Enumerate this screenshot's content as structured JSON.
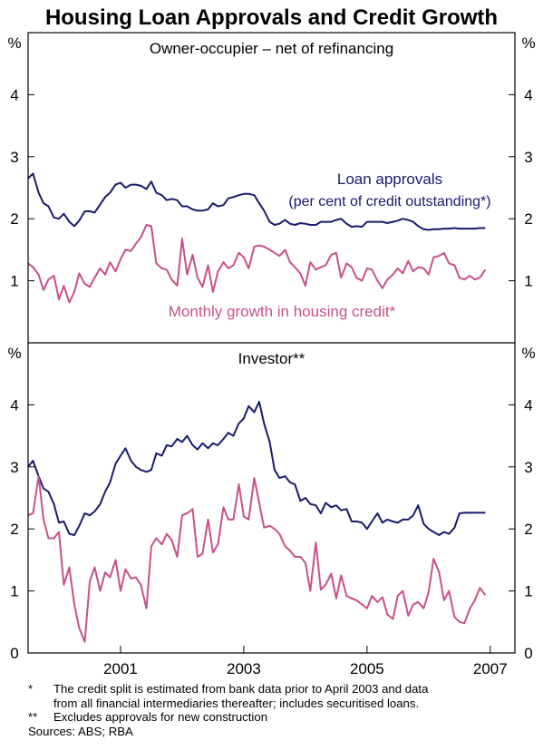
{
  "chart_data": {
    "title": "Housing Loan Approvals and Credit Growth",
    "x_axis": {
      "tick_labels": [
        "2001",
        "2003",
        "2005",
        "2007"
      ],
      "range": [
        1999.5,
        2007.4
      ]
    },
    "panels": [
      {
        "title": "Owner-occupier – net of refinancing",
        "y_unit": "%",
        "ylim": [
          0,
          5
        ],
        "y_ticks": [
          1,
          2,
          3,
          4
        ],
        "type": "line",
        "series": [
          {
            "name": "Loan approvals",
            "label_lines": [
              "Loan approvals",
              "(per cent of credit outstanding*)"
            ],
            "color": "#1a1a6e",
            "x": [
              1999.5,
              1999.58,
              1999.67,
              1999.75,
              1999.83,
              1999.92,
              2000.0,
              2000.08,
              2000.17,
              2000.25,
              2000.33,
              2000.42,
              2000.5,
              2000.58,
              2000.67,
              2000.75,
              2000.83,
              2000.92,
              2001.0,
              2001.08,
              2001.17,
              2001.25,
              2001.33,
              2001.42,
              2001.5,
              2001.58,
              2001.67,
              2001.75,
              2001.83,
              2001.92,
              2002.0,
              2002.08,
              2002.17,
              2002.25,
              2002.33,
              2002.42,
              2002.5,
              2002.58,
              2002.67,
              2002.75,
              2002.83,
              2002.92,
              2003.0,
              2003.08,
              2003.17,
              2003.25,
              2003.33,
              2003.42,
              2003.5,
              2003.58,
              2003.67,
              2003.75,
              2003.83,
              2003.92,
              2004.0,
              2004.08,
              2004.17,
              2004.25,
              2004.33,
              2004.42,
              2004.5,
              2004.58,
              2004.67,
              2004.75,
              2004.83,
              2004.92,
              2005.0,
              2005.08,
              2005.17,
              2005.25,
              2005.33,
              2005.42,
              2005.5,
              2005.58,
              2005.67,
              2005.75,
              2005.83,
              2005.92,
              2006.0,
              2006.08,
              2006.17,
              2006.25,
              2006.33,
              2006.42,
              2006.5,
              2006.58,
              2006.67,
              2006.75,
              2006.83,
              2006.92
            ],
            "values": [
              2.65,
              2.73,
              2.42,
              2.25,
              2.2,
              2.02,
              2.0,
              2.08,
              1.95,
              1.88,
              1.97,
              2.12,
              2.12,
              2.1,
              2.23,
              2.35,
              2.42,
              2.55,
              2.58,
              2.5,
              2.55,
              2.55,
              2.53,
              2.48,
              2.6,
              2.42,
              2.38,
              2.3,
              2.32,
              2.3,
              2.2,
              2.2,
              2.15,
              2.13,
              2.13,
              2.15,
              2.25,
              2.2,
              2.22,
              2.33,
              2.35,
              2.38,
              2.4,
              2.4,
              2.38,
              2.25,
              2.13,
              1.95,
              1.9,
              1.92,
              1.98,
              1.92,
              1.9,
              1.93,
              1.92,
              1.9,
              1.9,
              1.95,
              1.95,
              1.95,
              1.98,
              2.0,
              1.92,
              1.87,
              1.88,
              1.87,
              1.95,
              1.95,
              1.95,
              1.95,
              1.93,
              1.95,
              1.97,
              2.0,
              1.98,
              1.95,
              1.88,
              1.83,
              1.82,
              1.83,
              1.83,
              1.84,
              1.84,
              1.85,
              1.84,
              1.84,
              1.84,
              1.84,
              1.85,
              1.85
            ]
          },
          {
            "name": "Monthly growth in housing credit*",
            "label_lines": [
              "Monthly growth in housing credit*"
            ],
            "color": "#c8508a",
            "x": [
              1999.5,
              1999.58,
              1999.67,
              1999.75,
              1999.83,
              1999.92,
              2000.0,
              2000.08,
              2000.17,
              2000.25,
              2000.33,
              2000.42,
              2000.5,
              2000.58,
              2000.67,
              2000.75,
              2000.83,
              2000.92,
              2001.0,
              2001.08,
              2001.17,
              2001.25,
              2001.33,
              2001.42,
              2001.5,
              2001.58,
              2001.67,
              2001.75,
              2001.83,
              2001.92,
              2002.0,
              2002.08,
              2002.17,
              2002.25,
              2002.33,
              2002.42,
              2002.5,
              2002.58,
              2002.67,
              2002.75,
              2002.83,
              2002.92,
              2003.0,
              2003.08,
              2003.17,
              2003.25,
              2003.33,
              2003.42,
              2003.5,
              2003.58,
              2003.67,
              2003.75,
              2003.83,
              2003.92,
              2004.0,
              2004.08,
              2004.17,
              2004.25,
              2004.33,
              2004.42,
              2004.5,
              2004.58,
              2004.67,
              2004.75,
              2004.83,
              2004.92,
              2005.0,
              2005.08,
              2005.17,
              2005.25,
              2005.33,
              2005.42,
              2005.5,
              2005.58,
              2005.67,
              2005.75,
              2005.83,
              2005.92,
              2006.0,
              2006.08,
              2006.17,
              2006.25,
              2006.33,
              2006.42,
              2006.5,
              2006.58,
              2006.67,
              2006.75,
              2006.83,
              2006.92
            ],
            "values": [
              1.28,
              1.22,
              1.1,
              0.85,
              1.02,
              1.08,
              0.7,
              0.92,
              0.65,
              0.82,
              1.12,
              0.95,
              0.9,
              1.05,
              1.2,
              1.1,
              1.3,
              1.15,
              1.35,
              1.5,
              1.48,
              1.6,
              1.7,
              1.9,
              1.88,
              1.28,
              1.2,
              1.18,
              1.02,
              0.92,
              1.68,
              1.1,
              1.42,
              1.05,
              0.9,
              1.25,
              0.82,
              1.15,
              1.3,
              1.2,
              1.25,
              1.45,
              1.38,
              1.2,
              1.55,
              1.57,
              1.55,
              1.5,
              1.45,
              1.4,
              1.5,
              1.3,
              1.22,
              1.12,
              0.92,
              1.3,
              1.18,
              1.22,
              1.25,
              1.42,
              1.45,
              1.05,
              1.28,
              1.22,
              1.05,
              1.0,
              1.2,
              1.18,
              1.0,
              0.88,
              1.02,
              1.1,
              1.2,
              1.12,
              1.32,
              1.15,
              1.22,
              1.2,
              1.1,
              1.38,
              1.4,
              1.45,
              1.28,
              1.25,
              1.05,
              1.02,
              1.08,
              1.02,
              1.05,
              1.18
            ]
          }
        ]
      },
      {
        "title": "Investor**",
        "y_unit": "%",
        "ylim": [
          0,
          5
        ],
        "y_ticks": [
          0,
          1,
          2,
          3,
          4
        ],
        "type": "line",
        "series": [
          {
            "name": "Loan approvals",
            "color": "#1a1a6e",
            "x": [
              1999.5,
              1999.58,
              1999.67,
              1999.75,
              1999.83,
              1999.92,
              2000.0,
              2000.08,
              2000.17,
              2000.25,
              2000.33,
              2000.42,
              2000.5,
              2000.58,
              2000.67,
              2000.75,
              2000.83,
              2000.92,
              2001.0,
              2001.08,
              2001.17,
              2001.25,
              2001.33,
              2001.42,
              2001.5,
              2001.58,
              2001.67,
              2001.75,
              2001.83,
              2001.92,
              2002.0,
              2002.08,
              2002.17,
              2002.25,
              2002.33,
              2002.42,
              2002.5,
              2002.58,
              2002.67,
              2002.75,
              2002.83,
              2002.92,
              2003.0,
              2003.08,
              2003.17,
              2003.25,
              2003.33,
              2003.42,
              2003.5,
              2003.58,
              2003.67,
              2003.75,
              2003.83,
              2003.92,
              2004.0,
              2004.08,
              2004.17,
              2004.25,
              2004.33,
              2004.42,
              2004.5,
              2004.58,
              2004.67,
              2004.75,
              2004.83,
              2004.92,
              2005.0,
              2005.08,
              2005.17,
              2005.25,
              2005.33,
              2005.42,
              2005.5,
              2005.58,
              2005.67,
              2005.75,
              2005.83,
              2005.92,
              2006.0,
              2006.08,
              2006.17,
              2006.25,
              2006.33,
              2006.42,
              2006.5,
              2006.58,
              2006.67,
              2006.75,
              2006.83,
              2006.92
            ],
            "values": [
              3.0,
              3.1,
              2.85,
              2.65,
              2.6,
              2.4,
              2.1,
              2.12,
              1.92,
              1.9,
              2.05,
              2.25,
              2.22,
              2.28,
              2.4,
              2.6,
              2.75,
              3.05,
              3.18,
              3.3,
              3.1,
              3.0,
              2.95,
              2.92,
              2.95,
              3.22,
              3.18,
              3.35,
              3.33,
              3.45,
              3.4,
              3.5,
              3.35,
              3.28,
              3.38,
              3.3,
              3.38,
              3.35,
              3.45,
              3.55,
              3.5,
              3.7,
              3.78,
              3.98,
              3.88,
              4.05,
              3.7,
              3.4,
              2.95,
              2.82,
              2.85,
              2.75,
              2.72,
              2.45,
              2.5,
              2.4,
              2.38,
              2.25,
              2.42,
              2.35,
              2.38,
              2.3,
              2.32,
              2.12,
              2.12,
              2.1,
              2.0,
              2.12,
              2.25,
              2.1,
              2.15,
              2.12,
              2.1,
              2.15,
              2.15,
              2.22,
              2.38,
              2.08,
              2.0,
              1.95,
              1.9,
              1.95,
              1.92,
              2.02,
              2.25,
              2.26,
              2.26,
              2.26,
              2.26,
              2.26
            ]
          },
          {
            "name": "Monthly growth in housing credit*",
            "color": "#c8508a",
            "x": [
              1999.5,
              1999.58,
              1999.67,
              1999.75,
              1999.83,
              1999.92,
              2000.0,
              2000.08,
              2000.17,
              2000.25,
              2000.33,
              2000.42,
              2000.5,
              2000.58,
              2000.67,
              2000.75,
              2000.83,
              2000.92,
              2001.0,
              2001.08,
              2001.17,
              2001.25,
              2001.33,
              2001.42,
              2001.5,
              2001.58,
              2001.67,
              2001.75,
              2001.83,
              2001.92,
              2002.0,
              2002.08,
              2002.17,
              2002.25,
              2002.33,
              2002.42,
              2002.5,
              2002.58,
              2002.67,
              2002.75,
              2002.83,
              2002.92,
              2003.0,
              2003.08,
              2003.17,
              2003.25,
              2003.33,
              2003.42,
              2003.5,
              2003.58,
              2003.67,
              2003.75,
              2003.83,
              2003.92,
              2004.0,
              2004.08,
              2004.17,
              2004.25,
              2004.33,
              2004.42,
              2004.5,
              2004.58,
              2004.67,
              2004.75,
              2004.83,
              2004.92,
              2005.0,
              2005.08,
              2005.17,
              2005.25,
              2005.33,
              2005.42,
              2005.5,
              2005.58,
              2005.67,
              2005.75,
              2005.83,
              2005.92,
              2006.0,
              2006.08,
              2006.17,
              2006.25,
              2006.33,
              2006.42,
              2006.5,
              2006.58,
              2006.67,
              2006.75,
              2006.83,
              2006.92
            ],
            "values": [
              2.22,
              2.25,
              2.85,
              2.15,
              1.85,
              1.85,
              1.95,
              1.1,
              1.38,
              0.78,
              0.4,
              0.18,
              1.15,
              1.38,
              1.0,
              1.3,
              1.22,
              1.5,
              1.0,
              1.35,
              1.2,
              1.22,
              1.1,
              0.72,
              1.72,
              1.85,
              1.75,
              1.92,
              1.82,
              1.55,
              2.22,
              2.25,
              2.32,
              1.55,
              1.6,
              2.15,
              1.62,
              1.75,
              2.35,
              2.15,
              2.15,
              2.72,
              2.2,
              2.15,
              2.82,
              2.42,
              2.02,
              2.05,
              2.0,
              1.92,
              1.72,
              1.65,
              1.55,
              1.55,
              1.45,
              1.0,
              1.78,
              1.02,
              1.1,
              1.28,
              0.88,
              1.25,
              0.92,
              0.88,
              0.85,
              0.78,
              0.72,
              0.92,
              0.82,
              0.9,
              0.62,
              0.55,
              0.92,
              1.0,
              0.6,
              0.78,
              0.82,
              0.72,
              0.98,
              1.52,
              1.3,
              0.85,
              1.0,
              0.58,
              0.5,
              0.48,
              0.72,
              0.85,
              1.05,
              0.93
            ]
          }
        ]
      }
    ],
    "footnotes": [
      {
        "mark": "*",
        "lines": [
          "The credit split is estimated from bank data prior to April 2003 and data",
          "from all financial intermediaries thereafter; includes securitised loans."
        ]
      },
      {
        "mark": "**",
        "lines": [
          "Excludes approvals for new construction"
        ]
      },
      {
        "mark": "",
        "lines": [
          "Sources: ABS; RBA"
        ]
      }
    ]
  }
}
